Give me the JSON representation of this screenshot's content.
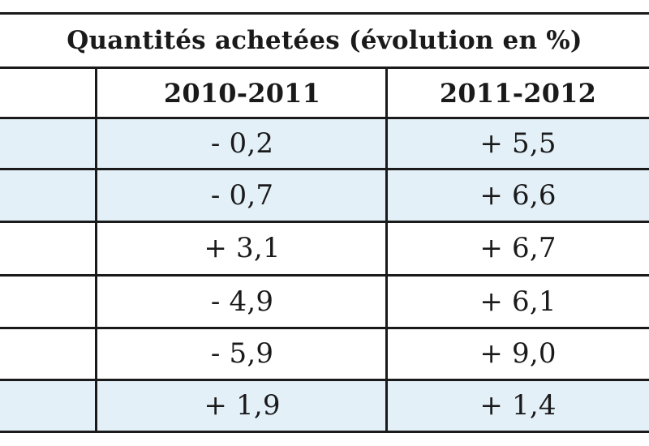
{
  "table": {
    "title": "Quantités achetées (évolution en %)",
    "columns": [
      "2010-2011",
      "2011-2012"
    ],
    "rows": [
      {
        "a": "- 0,2",
        "b": "+ 5,5",
        "shaded": true
      },
      {
        "a": "- 0,7",
        "b": "+ 6,6",
        "shaded": true
      },
      {
        "a": "+ 3,1",
        "b": "+ 6,7",
        "shaded": false
      },
      {
        "a": "- 4,9",
        "b": "+ 6,1",
        "shaded": false
      },
      {
        "a": "- 5,9",
        "b": "+ 9,0",
        "shaded": false
      },
      {
        "a": "+ 1,9",
        "b": "+ 1,4",
        "shaded": true
      }
    ],
    "shade_color": "#e4f0f8",
    "line_color": "#1a1a1a"
  }
}
